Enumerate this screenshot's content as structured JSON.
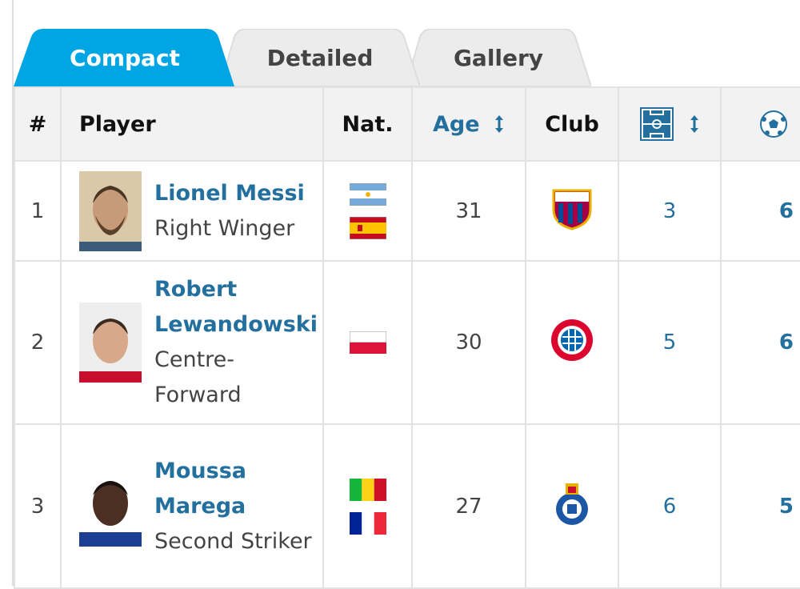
{
  "tabs": [
    "Compact",
    "Detailed",
    "Gallery"
  ],
  "table": {
    "headers": [
      "#",
      "Player",
      "Nat.",
      "Age",
      "Club"
    ],
    "rows": [
      {
        "rank": "1",
        "name": "Lionel Messi",
        "position": "Right Winger",
        "age": "31",
        "matches": "3",
        "goals": "6"
      },
      {
        "rank": "2",
        "name": "Robert Lewandowski",
        "position": "Centre-Forward",
        "age": "30",
        "matches": "5",
        "goals": "6"
      },
      {
        "rank": "3",
        "name": "Moussa Marega",
        "position": "Second Striker",
        "age": "27",
        "matches": "6",
        "goals": "5"
      }
    ]
  }
}
